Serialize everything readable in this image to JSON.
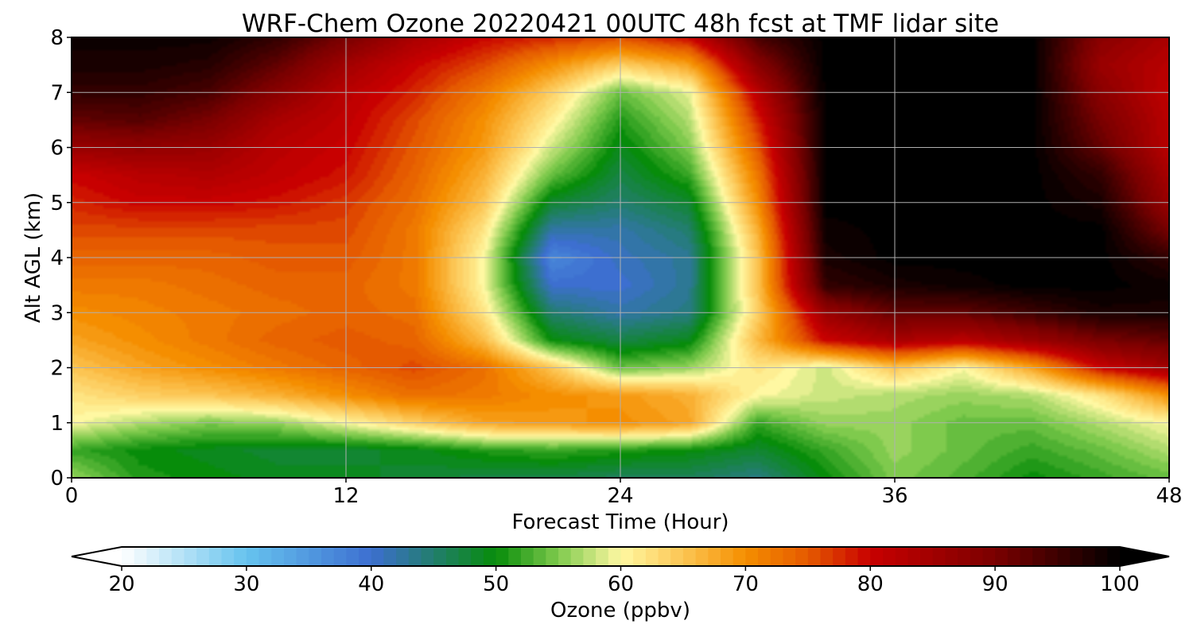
{
  "chart_data": {
    "type": "heatmap",
    "title": "WRF-Chem Ozone  20220421 00UTC 48h fcst at TMF lidar site",
    "xlabel": "Forecast Time (Hour)",
    "ylabel": "Alt AGL (km)",
    "xlim": [
      0,
      48
    ],
    "ylim": [
      0,
      8
    ],
    "x_ticks": [
      "0",
      "12",
      "24",
      "36",
      "48"
    ],
    "y_ticks": [
      "0",
      "1",
      "2",
      "3",
      "4",
      "5",
      "6",
      "7",
      "8"
    ],
    "grid": true,
    "x_hours": [
      0,
      3,
      6,
      9,
      12,
      15,
      18,
      21,
      24,
      27,
      30,
      33,
      36,
      39,
      42,
      45,
      48
    ],
    "y_km": [
      0,
      0.5,
      1,
      1.5,
      2,
      2.5,
      3,
      3.5,
      4,
      4.5,
      5,
      5.5,
      6,
      6.5,
      7,
      7.5,
      8
    ],
    "ozone_ppbv": [
      [
        56,
        51,
        50,
        49,
        49,
        48,
        47,
        47,
        46,
        46,
        44,
        50,
        55,
        53,
        50,
        52,
        54
      ],
      [
        52,
        50,
        49,
        48,
        48,
        49,
        51,
        52,
        51,
        50,
        48,
        52,
        56,
        54,
        52,
        54,
        57
      ],
      [
        60,
        57,
        55,
        56,
        60,
        64,
        68,
        69,
        70,
        68,
        52,
        56,
        56,
        54,
        54,
        57,
        60
      ],
      [
        62,
        64,
        65,
        67,
        70,
        73,
        72,
        70,
        69,
        67,
        60,
        58,
        57,
        56,
        57,
        62,
        70
      ],
      [
        65,
        68,
        70,
        72,
        74,
        76,
        73,
        65,
        54,
        56,
        62,
        58,
        65,
        60,
        68,
        80,
        85
      ],
      [
        68,
        70,
        72,
        74,
        75,
        74,
        66,
        50,
        47,
        49,
        66,
        80,
        84,
        82,
        86,
        90,
        92
      ],
      [
        70,
        71,
        72,
        73,
        74,
        73,
        62,
        45,
        42,
        44,
        64,
        86,
        92,
        92,
        95,
        98,
        98
      ],
      [
        72,
        72,
        73,
        74,
        74,
        72,
        60,
        40,
        40,
        43,
        65,
        96,
        98,
        99,
        100,
        100,
        99
      ],
      [
        74,
        74,
        74,
        75,
        75,
        72,
        60,
        37,
        41,
        43,
        65,
        98,
        100,
        100,
        100,
        100,
        96
      ],
      [
        76,
        76,
        76,
        76,
        76,
        72,
        62,
        42,
        42,
        45,
        67,
        99,
        100,
        100,
        100,
        100,
        90
      ],
      [
        78,
        80,
        80,
        79,
        77,
        73,
        65,
        48,
        45,
        48,
        70,
        100,
        100,
        100,
        100,
        98,
        86
      ],
      [
        80,
        82,
        83,
        81,
        79,
        74,
        67,
        54,
        47,
        52,
        72,
        100,
        100,
        100,
        100,
        96,
        84
      ],
      [
        86,
        87,
        86,
        82,
        80,
        75,
        69,
        58,
        49,
        55,
        75,
        100,
        100,
        100,
        100,
        92,
        82
      ],
      [
        92,
        93,
        90,
        84,
        81,
        76,
        70,
        61,
        51,
        57,
        78,
        100,
        100,
        100,
        100,
        90,
        82
      ],
      [
        96,
        96,
        94,
        88,
        82,
        78,
        72,
        64,
        54,
        59,
        82,
        100,
        100,
        100,
        100,
        88,
        81
      ],
      [
        98,
        98,
        97,
        92,
        85,
        80,
        76,
        70,
        64,
        68,
        88,
        100,
        100,
        100,
        100,
        86,
        82
      ],
      [
        99,
        99,
        99,
        96,
        90,
        84,
        80,
        78,
        76,
        80,
        94,
        100,
        100,
        100,
        100,
        88,
        84
      ]
    ],
    "colorbar": {
      "label": "Ozone  (ppbv)",
      "min": 20,
      "max": 100,
      "ticks": [
        "20",
        "30",
        "40",
        "50",
        "60",
        "70",
        "80",
        "90",
        "100"
      ],
      "extend": "both",
      "colors": {
        "20": "#ffffff",
        "30": "#66c3ee",
        "40": "#3d6fd0",
        "50": "#078c0a",
        "55": "#7fca4d",
        "60": "#fff8a2",
        "65": "#fcc553",
        "70": "#f58e00",
        "75": "#e55a00",
        "80": "#c80000",
        "90": "#7a0000",
        "100": "#000000"
      }
    }
  }
}
